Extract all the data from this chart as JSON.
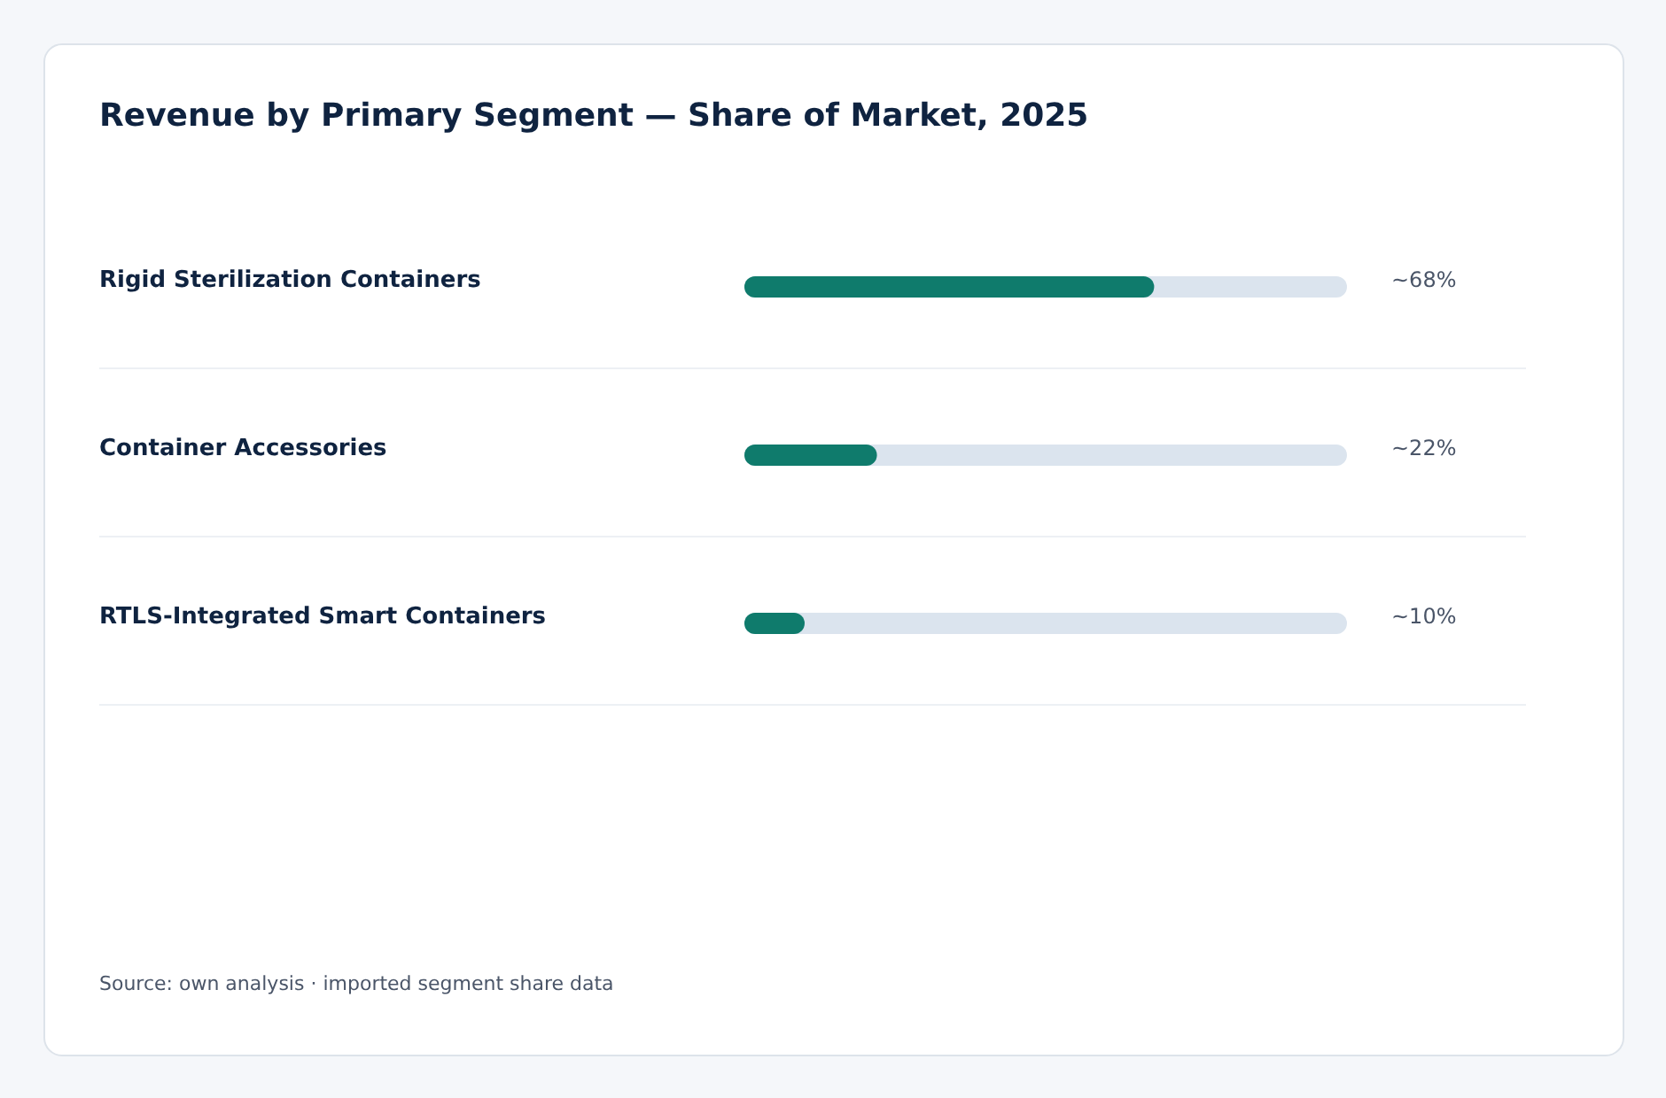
{
  "chart_data": {
    "type": "bar",
    "orientation": "horizontal",
    "title": "Revenue by Primary Segment — Share of Market, 2025",
    "categories": [
      "Rigid Sterilization Containers",
      "Container Accessories",
      "RTLS-Integrated Smart Containers"
    ],
    "values": [
      68,
      22,
      10
    ],
    "value_labels": [
      "~68%",
      "~22%",
      "~10%"
    ],
    "color": "#0f7b6c",
    "xlim": [
      0,
      100
    ],
    "tick_labels": "y",
    "annotations": [
      "Source: own analysis · imported segment share data"
    ]
  }
}
